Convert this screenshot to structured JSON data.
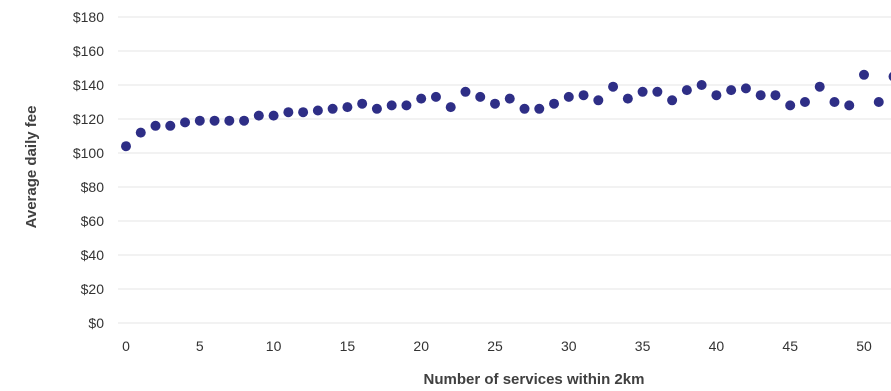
{
  "chart_data": {
    "type": "scatter",
    "xlabel": "Number of services within 2km",
    "ylabel": "Average daily fee",
    "xlim": [
      0,
      52
    ],
    "ylim": [
      0,
      180
    ],
    "x_ticks": [
      0,
      5,
      10,
      15,
      20,
      25,
      30,
      35,
      40,
      45,
      50
    ],
    "x_tick_labels": [
      "0",
      "5",
      "10",
      "15",
      "20",
      "25",
      "30",
      "35",
      "40",
      "45",
      "50"
    ],
    "y_ticks": [
      0,
      20,
      40,
      60,
      80,
      100,
      120,
      140,
      160,
      180
    ],
    "y_tick_labels": [
      "$0",
      "$20",
      "$40",
      "$60",
      "$80",
      "$100",
      "$120",
      "$140",
      "$160",
      "$180"
    ],
    "grid": true,
    "marker_color": "#2e2e86",
    "series": [
      {
        "x": [
          0,
          1,
          2,
          3,
          4,
          5,
          6,
          7,
          8,
          9,
          10,
          11,
          12,
          13,
          14,
          15,
          16,
          17,
          18,
          19,
          20,
          21,
          22,
          23,
          24,
          25,
          26,
          27,
          28,
          29,
          30,
          31,
          32,
          33,
          34,
          35,
          36,
          37,
          38,
          39,
          40,
          41,
          42,
          43,
          44,
          45,
          46,
          47,
          48,
          49,
          50,
          51,
          52
        ],
        "y": [
          104,
          112,
          116,
          116,
          118,
          119,
          119,
          119,
          119,
          122,
          122,
          124,
          124,
          125,
          126,
          127,
          129,
          126,
          128,
          128,
          132,
          133,
          127,
          136,
          133,
          129,
          132,
          126,
          126,
          129,
          133,
          134,
          131,
          139,
          132,
          136,
          136,
          131,
          137,
          140,
          134,
          137,
          138,
          134,
          134,
          128,
          130,
          139,
          130,
          128,
          146,
          130,
          145
        ]
      }
    ]
  }
}
